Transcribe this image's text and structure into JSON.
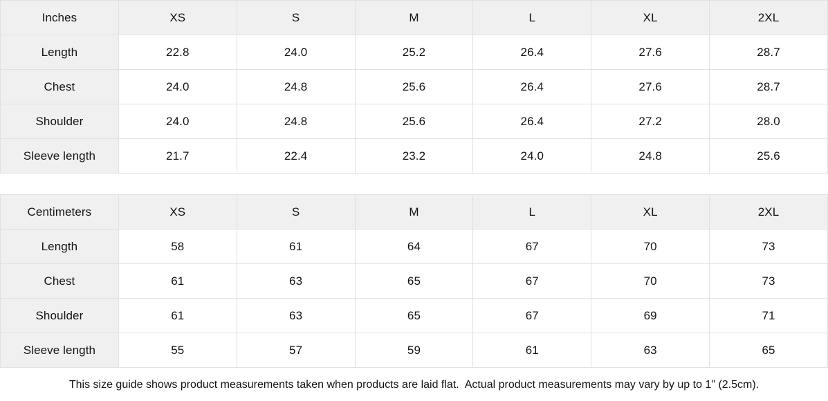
{
  "tables": [
    {
      "unit_label": "Inches",
      "sizes": [
        "XS",
        "S",
        "M",
        "L",
        "XL",
        "2XL"
      ],
      "rows": [
        {
          "label": "Length",
          "values": [
            "22.8",
            "24.0",
            "25.2",
            "26.4",
            "27.6",
            "28.7"
          ]
        },
        {
          "label": "Chest",
          "values": [
            "24.0",
            "24.8",
            "25.6",
            "26.4",
            "27.6",
            "28.7"
          ]
        },
        {
          "label": "Shoulder",
          "values": [
            "24.0",
            "24.8",
            "25.6",
            "26.4",
            "27.2",
            "28.0"
          ]
        },
        {
          "label": "Sleeve length",
          "values": [
            "21.7",
            "22.4",
            "23.2",
            "24.0",
            "24.8",
            "25.6"
          ]
        }
      ]
    },
    {
      "unit_label": "Centimeters",
      "sizes": [
        "XS",
        "S",
        "M",
        "L",
        "XL",
        "2XL"
      ],
      "rows": [
        {
          "label": "Length",
          "values": [
            "58",
            "61",
            "64",
            "67",
            "70",
            "73"
          ]
        },
        {
          "label": "Chest",
          "values": [
            "61",
            "63",
            "65",
            "67",
            "70",
            "73"
          ]
        },
        {
          "label": "Shoulder",
          "values": [
            "61",
            "63",
            "65",
            "67",
            "69",
            "71"
          ]
        },
        {
          "label": "Sleeve length",
          "values": [
            "55",
            "57",
            "59",
            "61",
            "63",
            "65"
          ]
        }
      ]
    }
  ],
  "footer": {
    "note": "This size guide shows product measurements taken when products are laid flat.  Actual product measurements may vary by up to 1\" (2.5cm)."
  },
  "colors": {
    "header_bg": "#f0f0f0",
    "border": "#e1e1e1",
    "text": "#141414",
    "background": "#ffffff"
  }
}
